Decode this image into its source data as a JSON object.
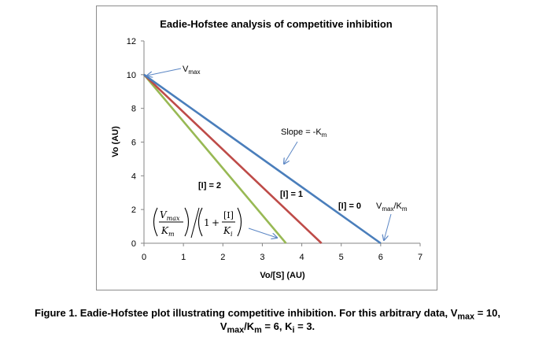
{
  "chart_data": {
    "type": "line",
    "title": "Eadie-Hofstee analysis of competitive inhibition",
    "xlabel": "Vo/[S] (AU)",
    "ylabel": "Vo (AU)",
    "xlim": [
      0,
      7
    ],
    "ylim": [
      0,
      12
    ],
    "xticks": [
      "0",
      "1",
      "2",
      "3",
      "4",
      "5",
      "6",
      "7"
    ],
    "yticks": [
      "0",
      "2",
      "4",
      "6",
      "8",
      "10",
      "12"
    ],
    "grid": false,
    "series": [
      {
        "name": "[I] = 0",
        "color": "#4a7ebb",
        "x": [
          0,
          6
        ],
        "y": [
          10,
          0
        ]
      },
      {
        "name": "[I] = 1",
        "color": "#be4b48",
        "x": [
          0,
          4.5
        ],
        "y": [
          10,
          0
        ]
      },
      {
        "name": "[I] = 2",
        "color": "#98b954",
        "x": [
          0,
          3.6
        ],
        "y": [
          10,
          0
        ]
      }
    ],
    "annotations": {
      "vmax": {
        "main": "V",
        "sub": "max"
      },
      "slope": {
        "main": "Slope =  -K",
        "sub": "m"
      },
      "vmax_km": {
        "main": "V",
        "sub1": "max",
        "mid": "/K",
        "sub2": "m"
      },
      "formula": {
        "num1": "V",
        "num1_sub": "max",
        "den1": "K",
        "den1_sub": "m",
        "one": "1",
        "plus": "+",
        "num2": "[I]",
        "den2": "K",
        "den2_sub": "i"
      }
    }
  },
  "caption": {
    "line1_a": "Figure 1. Eadie-Hofstee plot illustrating competitive inhibition. For this arbitrary data, V",
    "line1_sub": "max",
    "line1_b": " = 10,",
    "line2_a": "V",
    "line2_sub1": "max",
    "line2_b": "/K",
    "line2_sub2": "m",
    "line2_c": " = 6, K",
    "line2_sub3": "i",
    "line2_d": " = 3."
  }
}
